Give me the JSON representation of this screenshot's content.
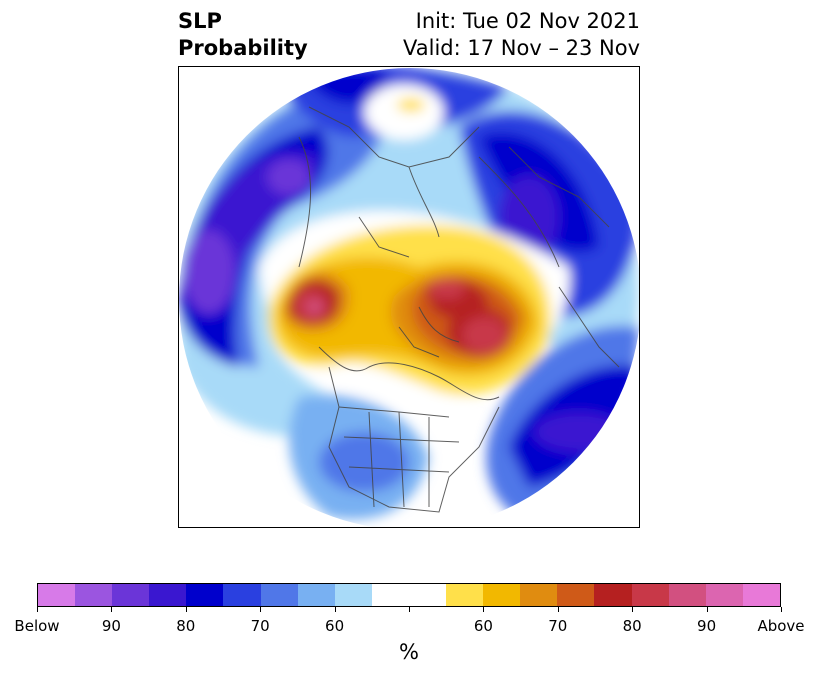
{
  "header": {
    "title_line1": "SLP",
    "title_line2": "Probability",
    "init_label": "Init: Tue 02 Nov 2021",
    "valid_label": "Valid: 17 Nov – 23 Nov"
  },
  "colorbar": {
    "colors": [
      "#d77ae8",
      "#9b55e0",
      "#6b35d8",
      "#3a17d0",
      "#0000cc",
      "#2a40e0",
      "#5077e8",
      "#78b0f2",
      "#a8daf8",
      "#ffffff",
      "#ffffff",
      "#ffe04a",
      "#f2b800",
      "#e08c10",
      "#cf5a18",
      "#b52020",
      "#c83848",
      "#d25080",
      "#dc65b0",
      "#e879d8"
    ],
    "tick_labels": [
      "Below",
      "90",
      "80",
      "70",
      "60",
      "60",
      "70",
      "80",
      "90",
      "Above"
    ],
    "units": "%"
  },
  "map": {
    "projection": "north-polar-stereographic",
    "region": "Northern Hemisphere",
    "boundaries": "coastlines, country and state borders"
  }
}
